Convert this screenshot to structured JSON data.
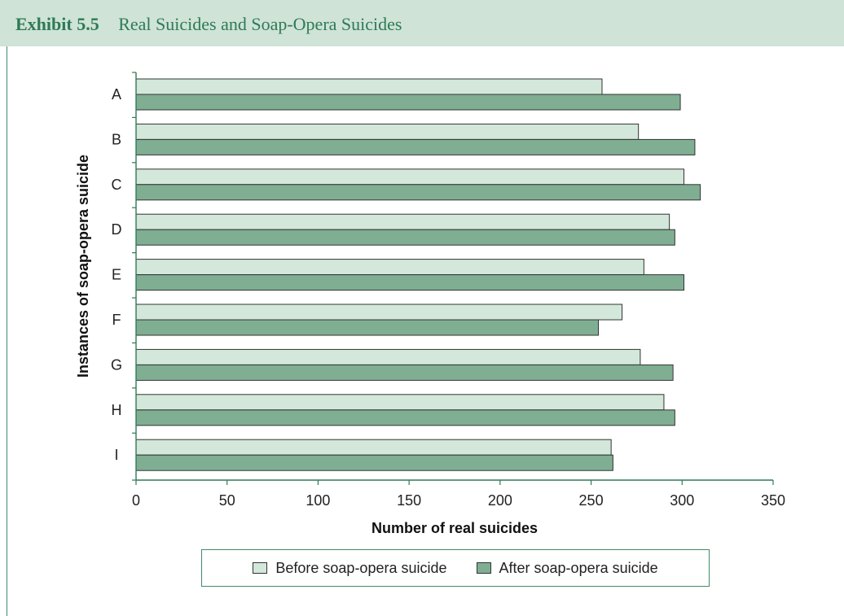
{
  "header": {
    "exhibit_label": "Exhibit 5.5",
    "title": "Real Suicides and Soap-Opera Suicides"
  },
  "colors": {
    "header_bg": "#cfe3d7",
    "accent": "#2f7a55",
    "before_fill": "#d3e8da",
    "after_fill": "#7fae93"
  },
  "chart_data": {
    "type": "bar",
    "orientation": "horizontal",
    "categories": [
      "A",
      "B",
      "C",
      "D",
      "E",
      "F",
      "G",
      "H",
      "I"
    ],
    "series": [
      {
        "name": "Before soap-opera suicide",
        "values": [
          256,
          276,
          301,
          293,
          279,
          267,
          277,
          290,
          261
        ]
      },
      {
        "name": "After soap-opera suicide",
        "values": [
          299,
          307,
          310,
          296,
          301,
          254,
          295,
          296,
          262
        ]
      }
    ],
    "xlabel": "Number of real suicides",
    "ylabel": "Instances of soap-opera suicide",
    "xlim": [
      0,
      350
    ],
    "xticks": [
      0,
      50,
      100,
      150,
      200,
      250,
      300,
      350
    ],
    "grid": false,
    "legend_position": "bottom"
  }
}
